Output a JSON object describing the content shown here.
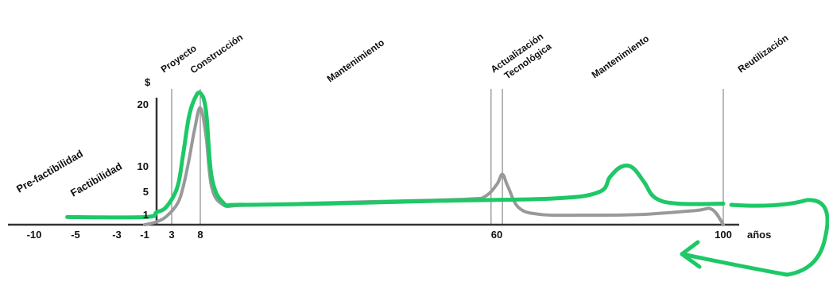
{
  "chart_data": {
    "type": "line",
    "y_axis_label": "$",
    "x_unit_label": "años",
    "x_ticks": [
      -10,
      -5,
      -3,
      -1,
      3,
      8,
      60,
      100
    ],
    "y_ticks": [
      1,
      5,
      10,
      20
    ],
    "phases": [
      "Pre-factibilidad",
      "Factibilidad",
      "Proyecto",
      "Construcción",
      "Mantenimiento",
      "Actualización",
      "Tecnológica",
      "Mantenimiento",
      "Reutilización"
    ],
    "phase_markers_years": [
      3,
      8,
      59,
      61,
      100
    ],
    "series": [
      {
        "color": "#999999",
        "x": [
          -1,
          0,
          2,
          4,
          5,
          6,
          7,
          8,
          9,
          10,
          12,
          15,
          25,
          40,
          55,
          58,
          60,
          61,
          62,
          64,
          68,
          75,
          85,
          95,
          98,
          100
        ],
        "y": [
          0,
          0.3,
          0.9,
          3,
          6,
          11,
          16,
          19.5,
          15,
          6,
          2.8,
          2.7,
          3.0,
          3.4,
          3.8,
          4.3,
          6.5,
          8.5,
          6,
          2.2,
          1.1,
          1.0,
          1.1,
          1.8,
          2,
          0
        ]
      },
      {
        "color": "#1dc866",
        "x": [
          -6,
          -1,
          0,
          2,
          4,
          5,
          6,
          7,
          8,
          9,
          10,
          12,
          15,
          30,
          50,
          70,
          78,
          80,
          82,
          84,
          86,
          88,
          92,
          100
        ],
        "y": [
          0.8,
          0.8,
          1.5,
          2.5,
          6,
          12,
          18,
          21,
          22,
          19,
          8,
          3.2,
          2.8,
          3.0,
          3.5,
          3.9,
          5,
          8,
          10,
          9.8,
          7,
          4,
          3,
          3
        ]
      }
    ]
  }
}
